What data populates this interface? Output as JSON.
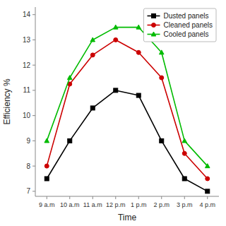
{
  "chart_data": {
    "type": "line",
    "xlabel": "Time",
    "ylabel": "Efficiency %",
    "categories": [
      "9 a.m",
      "10 a.m",
      "11 a.m",
      "12 p.m",
      "1 p.m",
      "2 p.m",
      "3 p.m",
      "4 p.m"
    ],
    "series": [
      {
        "name": "Dusted panels",
        "color": "#000000",
        "marker": "square",
        "values": [
          7.5,
          9.0,
          10.3,
          11.0,
          10.8,
          9.0,
          7.5,
          7.0
        ]
      },
      {
        "name": "Cleaned panels",
        "color": "#cc0000",
        "marker": "circle",
        "values": [
          8.0,
          11.25,
          12.4,
          13.0,
          12.5,
          11.5,
          8.5,
          7.5
        ]
      },
      {
        "name": "Cooled panels",
        "color": "#00bb00",
        "marker": "triangle",
        "values": [
          9.0,
          11.5,
          13.0,
          13.5,
          13.5,
          12.5,
          9.0,
          8.0
        ]
      }
    ],
    "ylim": [
      6.8,
      14.3
    ],
    "yticks": [
      7,
      8,
      9,
      10,
      11,
      12,
      13,
      14
    ],
    "grid": false,
    "legend": "upper right"
  }
}
